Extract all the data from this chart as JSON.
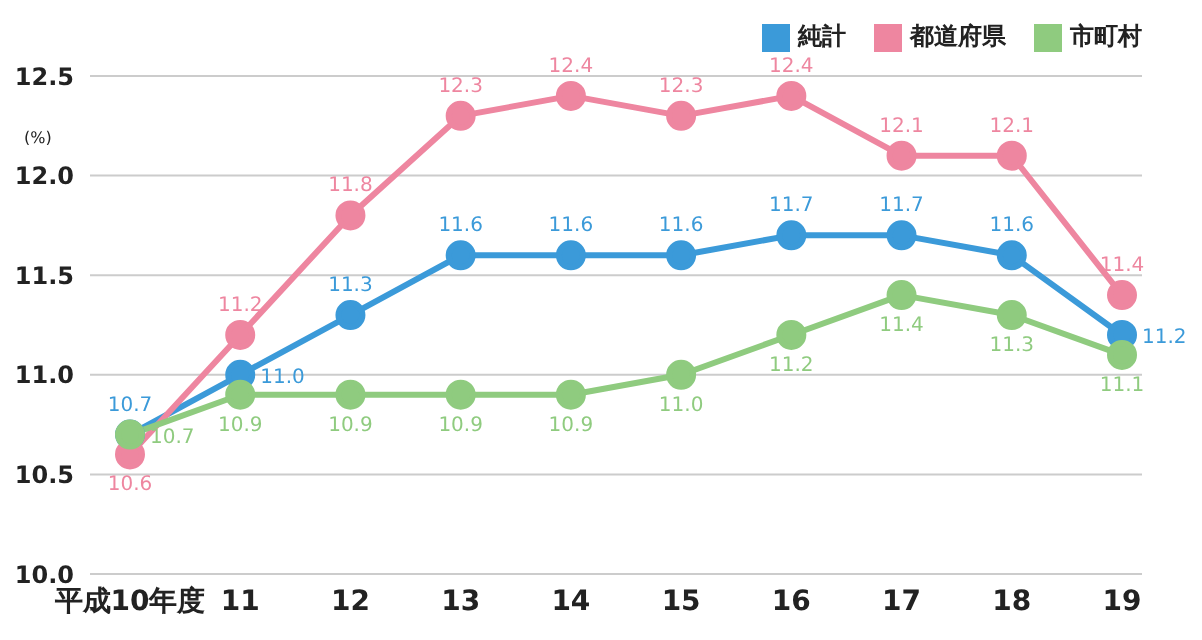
{
  "chart_data": {
    "type": "line",
    "ylabel": "(%)",
    "categories": [
      "平成10年度",
      "11",
      "12",
      "13",
      "14",
      "15",
      "16",
      "17",
      "18",
      "19"
    ],
    "series": [
      {
        "name": "純計",
        "color": "#3b9ad9",
        "values": [
          10.7,
          11.0,
          11.3,
          11.6,
          11.6,
          11.6,
          11.7,
          11.7,
          11.6,
          11.2
        ],
        "value_labels": [
          "10.7",
          "11.0",
          "11.3",
          "11.6",
          "11.6",
          "11.6",
          "11.7",
          "11.7",
          "11.6",
          "11.2"
        ]
      },
      {
        "name": "都道府県",
        "color": "#ee86a0",
        "values": [
          10.6,
          11.2,
          11.8,
          12.3,
          12.4,
          12.3,
          12.4,
          12.1,
          12.1,
          11.4
        ],
        "value_labels": [
          "10.6",
          "11.2",
          "11.8",
          "12.3",
          "12.4",
          "12.3",
          "12.4",
          "12.1",
          "12.1",
          "11.4"
        ]
      },
      {
        "name": "市町村",
        "color": "#8fcb7f",
        "values": [
          10.7,
          10.9,
          10.9,
          10.9,
          10.9,
          11.0,
          11.2,
          11.4,
          11.3,
          11.1
        ],
        "value_labels": [
          "10.7",
          "10.9",
          "10.9",
          "10.9",
          "10.9",
          "11.0",
          "11.2",
          "11.4",
          "11.3",
          "11.1"
        ]
      }
    ],
    "ylim": [
      10,
      12.5
    ],
    "yticks": [
      {
        "value": 10,
        "label": "10.0"
      },
      {
        "value": 10.5,
        "label": "10.5"
      },
      {
        "value": 11,
        "label": "11.0"
      },
      {
        "value": 11.5,
        "label": "11.5"
      },
      {
        "value": 12,
        "label": "12.0"
      },
      {
        "value": 12.5,
        "label": "12.5"
      }
    ],
    "grid": "y",
    "legend": "top right",
    "marker": "circle",
    "line_style": "solid"
  }
}
